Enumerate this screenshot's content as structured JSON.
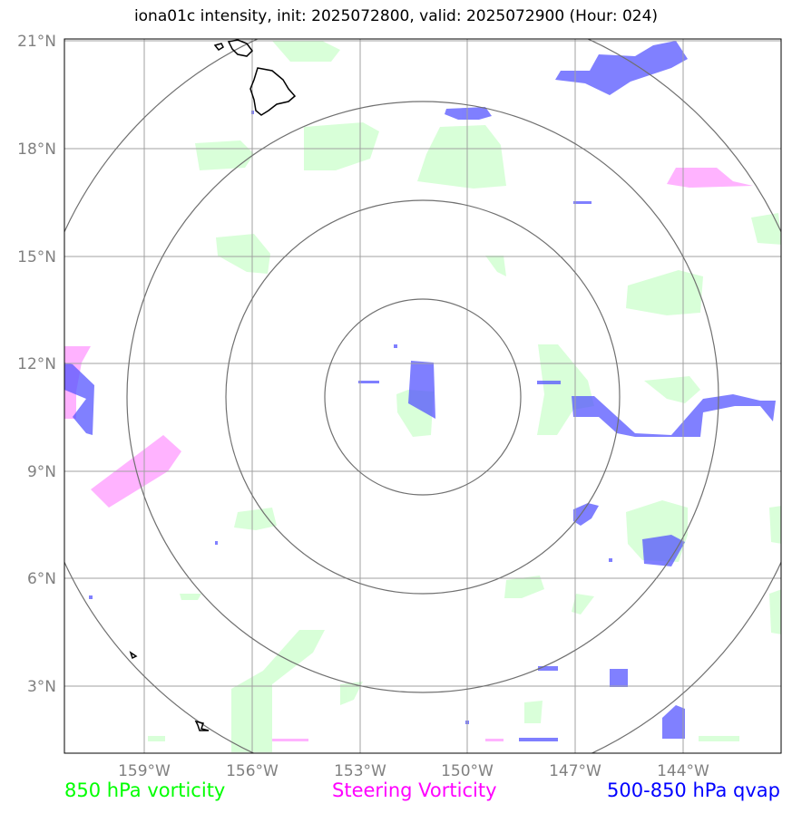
{
  "title": "iona01c intensity, init: 2025072800, valid: 2025072900 (Hour: 024)",
  "lat_ticks": [
    "21°N",
    "18°N",
    "15°N",
    "12°N",
    "9°N",
    "6°N",
    "3°N"
  ],
  "lon_ticks": [
    "159°W",
    "156°W",
    "153°W",
    "150°W",
    "147°W",
    "144°W"
  ],
  "legend": {
    "green": "850 hPa vorticity",
    "magenta": "Steering Vorticity",
    "blue": "500-850 hPa qvap"
  },
  "colors": {
    "green": "#ccffcc",
    "magenta": "#ff99ff",
    "blue": "#5555ff",
    "grid": "#a0a0a0",
    "rings": "#707070",
    "coast": "#000000"
  }
}
